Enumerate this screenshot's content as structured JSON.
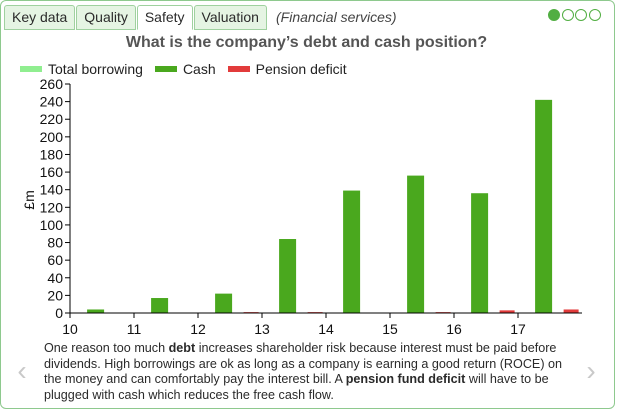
{
  "tabs": [
    {
      "label": "Key data",
      "active": false
    },
    {
      "label": "Quality",
      "active": false
    },
    {
      "label": "Safety",
      "active": true
    },
    {
      "label": "Valuation",
      "active": false
    }
  ],
  "context": "(Financial services)",
  "pager": {
    "total": 4,
    "current": 1
  },
  "colors": {
    "total_borrowing": "#90ee90",
    "cash": "#4aa81e",
    "pension_deficit": "#e23b3b",
    "accent": "#52ae43"
  },
  "chart_data": {
    "type": "bar",
    "title": "What is the company’s debt and cash position?",
    "ylabel": "£m",
    "xlabel": "",
    "ylim": [
      0,
      260
    ],
    "yticks": [
      0,
      20,
      40,
      60,
      80,
      100,
      120,
      140,
      160,
      180,
      200,
      220,
      240,
      260
    ],
    "xlim": [
      10,
      18
    ],
    "xtick_labels": [
      "10",
      "11",
      "12",
      "13",
      "14",
      "15",
      "16",
      "17"
    ],
    "legend_position": "top-left",
    "grid": false,
    "categories": [
      "10",
      "11",
      "12",
      "13",
      "14",
      "15",
      "16",
      "17"
    ],
    "series": [
      {
        "name": "Total borrowing",
        "color": "#90ee90",
        "values": [
          0,
          0,
          0,
          0,
          0,
          0,
          0,
          0
        ]
      },
      {
        "name": "Cash",
        "color": "#4aa81e",
        "values": [
          4,
          17,
          22,
          84,
          139,
          156,
          136,
          242
        ]
      },
      {
        "name": "Pension deficit",
        "color": "#e23b3b",
        "values": [
          0,
          0,
          1,
          1,
          0,
          1,
          3,
          4
        ]
      }
    ]
  },
  "description": {
    "p1": "One reason too much ",
    "debt": "debt",
    "p2": " increases shareholder risk because interest must be paid before dividends. High borrowings are ok as long as a company is earning a good return (ROCE) on the money and can comfortably pay the interest bill. A ",
    "pension": "pension fund deficit",
    "p3": " will have to be plugged with cash which reduces the free cash flow."
  },
  "nav": {
    "prev": "‹",
    "next": "›"
  }
}
